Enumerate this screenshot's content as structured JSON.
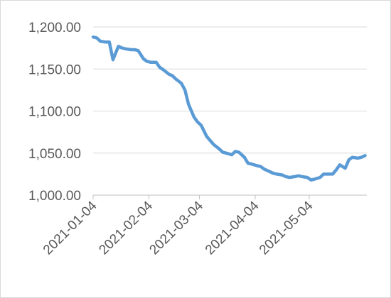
{
  "chart_data": {
    "type": "line",
    "title": "",
    "xlabel": "",
    "ylabel": "",
    "ylim": [
      1000,
      1200
    ],
    "y_ticks": [
      1000,
      1050,
      1100,
      1150,
      1200
    ],
    "y_tick_labels": [
      "1,000.00",
      "1,050.00",
      "1,100.00",
      "1,150.00",
      "1,200.00"
    ],
    "x_tick_labels": [
      "2021-01-04",
      "2021-02-04",
      "2021-03-04",
      "2021-04-04",
      "2021-05-04"
    ],
    "x_range": [
      "2021-01-04",
      "2021-06-05"
    ],
    "grid": true,
    "legend": "none",
    "colors": {
      "series": "#5b9bd5",
      "grid": "#d9d9d9",
      "text": "#595959"
    },
    "series": [
      {
        "x": [
          "2021-01-04",
          "2021-01-06",
          "2021-01-08",
          "2021-01-11",
          "2021-01-13",
          "2021-01-15",
          "2021-01-18",
          "2021-01-19",
          "2021-01-20",
          "2021-01-22",
          "2021-01-25",
          "2021-01-27",
          "2021-01-29",
          "2021-02-01",
          "2021-02-03",
          "2021-02-05",
          "2021-02-08",
          "2021-02-10",
          "2021-02-12",
          "2021-02-15",
          "2021-02-17",
          "2021-02-19",
          "2021-02-22",
          "2021-02-24",
          "2021-02-26",
          "2021-03-01",
          "2021-03-03",
          "2021-03-05",
          "2021-03-08",
          "2021-03-10",
          "2021-03-12",
          "2021-03-15",
          "2021-03-17",
          "2021-03-19",
          "2021-03-22",
          "2021-03-24",
          "2021-03-26",
          "2021-03-29",
          "2021-03-31",
          "2021-04-02",
          "2021-04-05",
          "2021-04-07",
          "2021-04-09",
          "2021-04-12",
          "2021-04-14",
          "2021-04-16",
          "2021-04-19",
          "2021-04-21",
          "2021-04-23",
          "2021-04-26",
          "2021-04-28",
          "2021-04-30",
          "2021-05-03",
          "2021-05-05",
          "2021-05-07",
          "2021-05-10",
          "2021-05-12",
          "2021-05-14",
          "2021-05-17",
          "2021-05-19",
          "2021-05-21",
          "2021-05-24",
          "2021-05-26",
          "2021-05-28",
          "2021-05-31",
          "2021-06-02",
          "2021-06-04"
        ],
        "y": [
          1188,
          1187,
          1183,
          1182,
          1182,
          1161,
          1177,
          1176,
          1175,
          1174,
          1173,
          1173,
          1172,
          1162,
          1159,
          1158,
          1158,
          1152,
          1149,
          1144,
          1142,
          1138,
          1133,
          1125,
          1108,
          1093,
          1087,
          1083,
          1070,
          1065,
          1060,
          1055,
          1051,
          1050,
          1048,
          1052,
          1051,
          1045,
          1038,
          1037,
          1035,
          1034,
          1031,
          1028,
          1026,
          1025,
          1024,
          1022,
          1021,
          1022,
          1023,
          1022,
          1021,
          1018,
          1019,
          1021,
          1025,
          1025,
          1025,
          1030,
          1036,
          1032,
          1042,
          1045,
          1044,
          1045,
          1047
        ]
      }
    ]
  }
}
